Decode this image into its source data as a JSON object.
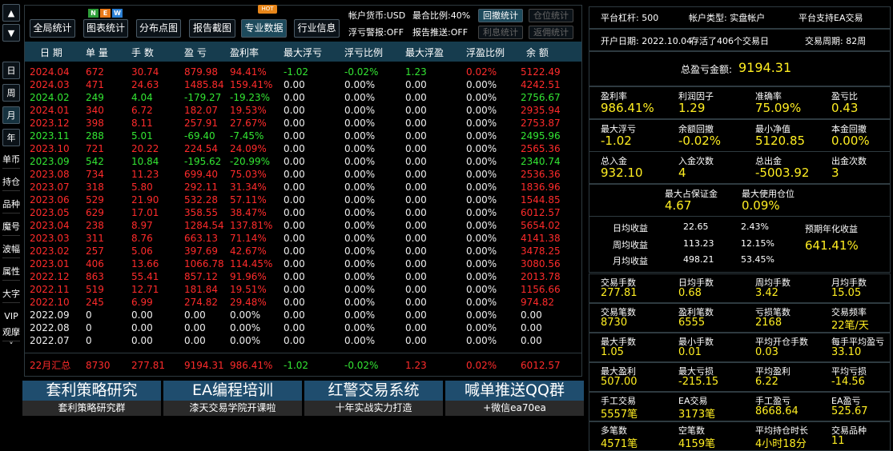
{
  "sidebar": {
    "arrows": [
      "▲",
      "▼"
    ],
    "periods": [
      "日",
      "周",
      "月",
      "年"
    ],
    "menu": [
      "单币",
      "持仓",
      "品种",
      "魔号",
      "波幅",
      "属性",
      "大字",
      "VIP",
      "观摩"
    ],
    "more": "˅"
  },
  "toolbar": {
    "buttons": [
      "全局统计",
      "图表统计",
      "分布点图",
      "报告截图",
      "专业数据",
      "行业信息"
    ],
    "new_badge": [
      "N",
      "E",
      "W"
    ],
    "hot_badge": "HOT",
    "info": [
      "帐户货币:USD",
      "最合比例:40%",
      "浮亏警报:OFF",
      "报告推送:OFF"
    ],
    "toggles": [
      "回撤统计",
      "仓位统计",
      "利息统计",
      "返佣统计"
    ]
  },
  "table": {
    "header": [
      "日 期",
      "单 量",
      "手 数",
      "盈 亏",
      "盈利率",
      "最大浮亏",
      "浮亏比例",
      "最大浮盈",
      "浮盈比例",
      "余 额"
    ],
    "rows": [
      [
        "2024.04",
        "672",
        "30.74",
        "879.98",
        "94.41%",
        "-1.02",
        "-0.02%",
        "1.23",
        "0.02%",
        "5122.49"
      ],
      [
        "2024.03",
        "471",
        "24.63",
        "1485.84",
        "159.41%",
        "0.00",
        "0.00%",
        "0.00",
        "0.00%",
        "4242.51"
      ],
      [
        "2024.02",
        "249",
        "4.04",
        "-179.27",
        "-19.23%",
        "0.00",
        "0.00%",
        "0.00",
        "0.00%",
        "2756.67"
      ],
      [
        "2024.01",
        "340",
        "6.72",
        "182.07",
        "19.53%",
        "0.00",
        "0.00%",
        "0.00",
        "0.00%",
        "2935.94"
      ],
      [
        "2023.12",
        "398",
        "8.11",
        "257.91",
        "27.67%",
        "0.00",
        "0.00%",
        "0.00",
        "0.00%",
        "2753.87"
      ],
      [
        "2023.11",
        "288",
        "5.01",
        "-69.40",
        "-7.45%",
        "0.00",
        "0.00%",
        "0.00",
        "0.00%",
        "2495.96"
      ],
      [
        "2023.10",
        "721",
        "20.22",
        "224.54",
        "24.09%",
        "0.00",
        "0.00%",
        "0.00",
        "0.00%",
        "2565.36"
      ],
      [
        "2023.09",
        "542",
        "10.84",
        "-195.62",
        "-20.99%",
        "0.00",
        "0.00%",
        "0.00",
        "0.00%",
        "2340.74"
      ],
      [
        "2023.08",
        "734",
        "11.23",
        "699.40",
        "75.03%",
        "0.00",
        "0.00%",
        "0.00",
        "0.00%",
        "2536.36"
      ],
      [
        "2023.07",
        "318",
        "5.80",
        "292.11",
        "31.34%",
        "0.00",
        "0.00%",
        "0.00",
        "0.00%",
        "1836.96"
      ],
      [
        "2023.06",
        "529",
        "21.90",
        "532.28",
        "57.11%",
        "0.00",
        "0.00%",
        "0.00",
        "0.00%",
        "1544.85"
      ],
      [
        "2023.05",
        "629",
        "17.01",
        "358.55",
        "38.47%",
        "0.00",
        "0.00%",
        "0.00",
        "0.00%",
        "6012.57"
      ],
      [
        "2023.04",
        "238",
        "8.97",
        "1284.54",
        "137.81%",
        "0.00",
        "0.00%",
        "0.00",
        "0.00%",
        "5654.02"
      ],
      [
        "2023.03",
        "311",
        "8.76",
        "663.13",
        "71.14%",
        "0.00",
        "0.00%",
        "0.00",
        "0.00%",
        "4141.38"
      ],
      [
        "2023.02",
        "257",
        "5.06",
        "397.69",
        "42.67%",
        "0.00",
        "0.00%",
        "0.00",
        "0.00%",
        "3478.25"
      ],
      [
        "2023.01",
        "406",
        "13.66",
        "1066.78",
        "114.45%",
        "0.00",
        "0.00%",
        "0.00",
        "0.00%",
        "3080.56"
      ],
      [
        "2022.12",
        "863",
        "55.41",
        "857.12",
        "91.96%",
        "0.00",
        "0.00%",
        "0.00",
        "0.00%",
        "2013.78"
      ],
      [
        "2022.11",
        "519",
        "12.71",
        "181.84",
        "19.51%",
        "0.00",
        "0.00%",
        "0.00",
        "0.00%",
        "1156.66"
      ],
      [
        "2022.10",
        "245",
        "6.99",
        "274.82",
        "29.48%",
        "0.00",
        "0.00%",
        "0.00",
        "0.00%",
        "974.82"
      ],
      [
        "2022.09",
        "0",
        "0.00",
        "0.00",
        "0.00%",
        "0.00",
        "0.00%",
        "0.00",
        "0.00%",
        "0.00"
      ],
      [
        "2022.08",
        "0",
        "0.00",
        "0.00",
        "0.00%",
        "0.00",
        "0.00%",
        "0.00",
        "0.00%",
        "0.00"
      ],
      [
        "2022.07",
        "0",
        "0.00",
        "0.00",
        "0.00%",
        "0.00",
        "0.00%",
        "0.00",
        "0.00%",
        "0.00"
      ]
    ],
    "total": [
      "22月汇总",
      "8730",
      "277.81",
      "9194.31",
      "986.41%",
      "-1.02",
      "-0.02%",
      "1.23",
      "0.02%",
      "6012.57"
    ]
  },
  "banners": [
    {
      "title": "套利策略研究",
      "subtitle": "套利策略研究群"
    },
    {
      "title": "EA编程培训",
      "subtitle": "漆天交易学院开课啦"
    },
    {
      "title": "红警交易系统",
      "subtitle": "十年实战实力打造"
    },
    {
      "title": "喊单推送QQ群",
      "subtitle": "+微信ea70ea"
    }
  ],
  "panel": {
    "info": [
      [
        "平台杠杆: 500",
        "帐户类型: 实盘帐户",
        "平台支持EA交易"
      ],
      [
        "开户日期: 2022.10.04",
        "存活了406个交易日",
        "交易周期: 82周"
      ]
    ],
    "total": {
      "label": "总盈亏金额:",
      "value": "9194.31"
    },
    "stats": [
      [
        {
          "label": "盈利率",
          "value": "986.41%"
        },
        {
          "label": "利润因子",
          "value": "1.29"
        },
        {
          "label": "准确率",
          "value": "75.09%"
        },
        {
          "label": "盈亏比",
          "value": "0.43"
        }
      ],
      [
        {
          "label": "最大浮亏",
          "value": "-1.02"
        },
        {
          "label": "余额回撤",
          "value": "-0.02%"
        },
        {
          "label": "最小净值",
          "value": "5120.85"
        },
        {
          "label": "本金回撤",
          "value": "0.00%"
        }
      ],
      [
        {
          "label": "总入金",
          "value": "932.10"
        },
        {
          "label": "入金次数",
          "value": "4"
        },
        {
          "label": "总出金",
          "value": "-5003.92"
        },
        {
          "label": "出金次数",
          "value": "3"
        }
      ],
      [
        {
          "label": "最大占保证金",
          "value": "4.67"
        },
        {
          "label": "最大使用仓位",
          "value": "0.09%"
        }
      ]
    ],
    "averages": [
      [
        "日均收益",
        "22.65",
        "2.43%"
      ],
      [
        "周均收益",
        "113.23",
        "12.15%"
      ],
      [
        "月均收益",
        "498.21",
        "53.45%"
      ]
    ],
    "annual": {
      "label": "预期年化收益",
      "value": "641.41%"
    },
    "trade_stats": [
      [
        {
          "label": "交易手数",
          "value": "277.81"
        },
        {
          "label": "日均手数",
          "value": "0.68"
        },
        {
          "label": "周均手数",
          "value": "3.42"
        },
        {
          "label": "月均手数",
          "value": "15.05"
        }
      ],
      [
        {
          "label": "交易笔数",
          "value": "8730"
        },
        {
          "label": "盈利笔数",
          "value": "6555"
        },
        {
          "label": "亏损笔数",
          "value": "2168"
        },
        {
          "label": "交易频率",
          "value": "22笔/天"
        }
      ],
      [
        {
          "label": "最大手数",
          "value": "1.05"
        },
        {
          "label": "最小手数",
          "value": "0.01"
        },
        {
          "label": "平均开仓手数",
          "value": "0.03"
        },
        {
          "label": "每手平均盈亏",
          "value": "33.10"
        }
      ],
      [
        {
          "label": "最大盈利",
          "value": "507.00"
        },
        {
          "label": "最大亏损",
          "value": "-215.15"
        },
        {
          "label": "平均盈利",
          "value": "6.22"
        },
        {
          "label": "平均亏损",
          "value": "-14.56"
        }
      ],
      [
        {
          "label": "手工交易",
          "value": "5557笔"
        },
        {
          "label": "EA交易",
          "value": "3173笔"
        },
        {
          "label": "手工盈亏",
          "value": "8668.64"
        },
        {
          "label": "EA盈亏",
          "value": "525.67"
        }
      ],
      [
        {
          "label": "多笔数",
          "value": "4571笔"
        },
        {
          "label": "空笔数",
          "value": "4159笔"
        },
        {
          "label": "平均持仓时长",
          "value": "4小时18分"
        },
        {
          "label": "交易品种",
          "value": "11"
        }
      ]
    ]
  }
}
